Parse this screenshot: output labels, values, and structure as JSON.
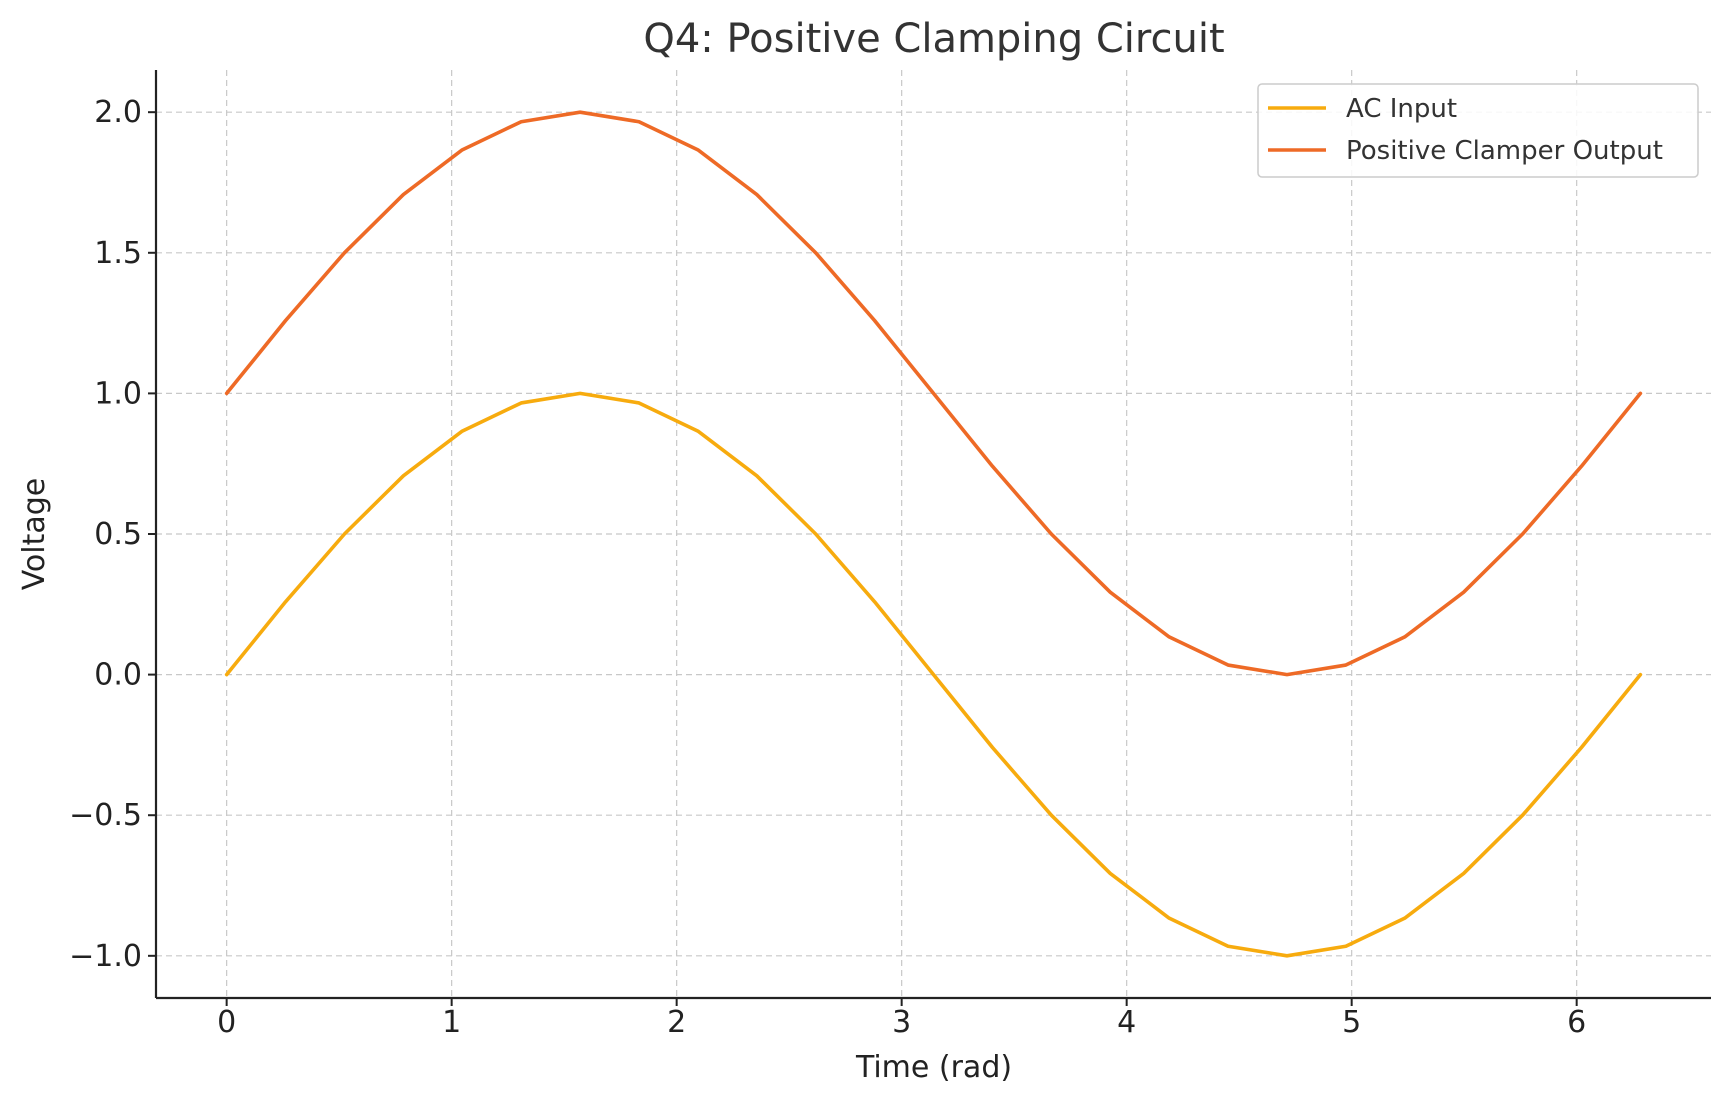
{
  "chart_data": {
    "type": "line",
    "title": "Q4: Positive Clamping Circuit",
    "xlabel": "Time (rad)",
    "ylabel": "Voltage",
    "xlim": [
      -0.314,
      6.597
    ],
    "ylim": [
      -1.15,
      2.15
    ],
    "x_ticks": [
      0,
      1,
      2,
      3,
      4,
      5,
      6
    ],
    "x_tick_labels": [
      "0",
      "1",
      "2",
      "3",
      "4",
      "5",
      "6"
    ],
    "y_ticks": [
      -1.0,
      -0.5,
      0.0,
      0.5,
      1.0,
      1.5,
      2.0
    ],
    "y_tick_labels": [
      "−1.0",
      "−0.5",
      "0.0",
      "0.5",
      "1.0",
      "1.5",
      "2.0"
    ],
    "grid": true,
    "legend_position": "top-right",
    "x": [
      0,
      0.2618,
      0.5236,
      0.7854,
      1.0472,
      1.309,
      1.5708,
      1.8326,
      2.0944,
      2.3562,
      2.618,
      2.8798,
      3.1416,
      3.4034,
      3.6652,
      3.927,
      4.1888,
      4.4506,
      4.7124,
      4.9742,
      5.236,
      5.4978,
      5.7596,
      6.0214,
      6.2832
    ],
    "series": [
      {
        "name": "AC Input",
        "color": "#f7ab0e",
        "values": [
          0,
          0.259,
          0.5,
          0.707,
          0.866,
          0.966,
          1.0,
          0.966,
          0.866,
          0.707,
          0.5,
          0.259,
          0,
          -0.259,
          -0.5,
          -0.707,
          -0.866,
          -0.966,
          -1.0,
          -0.966,
          -0.866,
          -0.707,
          -0.5,
          -0.259,
          0
        ]
      },
      {
        "name": "Positive Clamper Output",
        "color": "#ee6a26",
        "values": [
          1.0,
          1.259,
          1.5,
          1.707,
          1.866,
          1.966,
          2.0,
          1.966,
          1.866,
          1.707,
          1.5,
          1.259,
          1.0,
          0.741,
          0.5,
          0.293,
          0.134,
          0.034,
          0.0,
          0.034,
          0.134,
          0.293,
          0.5,
          0.741,
          1.0
        ]
      }
    ]
  }
}
